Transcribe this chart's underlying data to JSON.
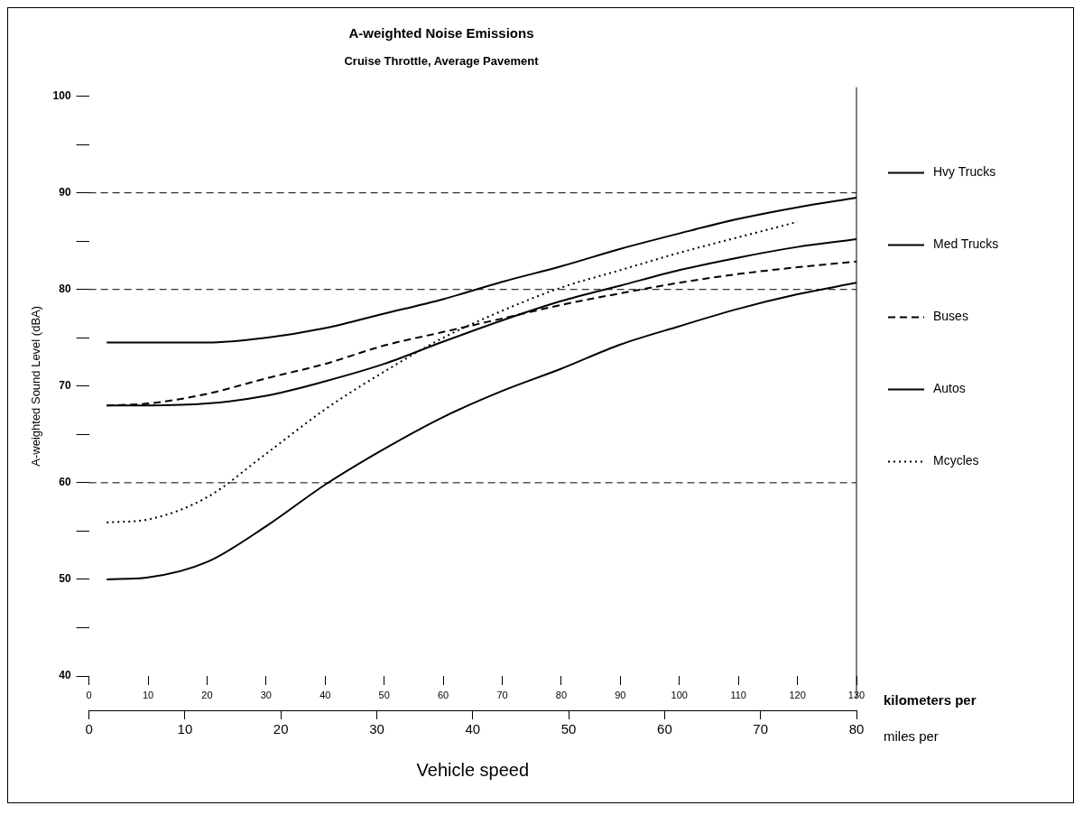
{
  "chart_data": {
    "type": "line",
    "title": "A-weighted Noise Emissions",
    "subtitle": "Cruise Throttle, Average Pavement",
    "ylabel": "A-weighted Sound Level (dBA)",
    "xlabel": "kilometers per",
    "x2label": "miles per",
    "annotations": [
      "Vehicle speed"
    ],
    "x": [
      3,
      10,
      20,
      30,
      40,
      50,
      60,
      70,
      80,
      90,
      100,
      110,
      120,
      130
    ],
    "series": [
      {
        "name": "Hvy Trucks",
        "color": "#000000",
        "line_style": "solid",
        "values": [
          74.5,
          74.5,
          74.5,
          75,
          76,
          77.5,
          79,
          80.8,
          82.4,
          84.2,
          85.8,
          87.3,
          88.5,
          89.5
        ]
      },
      {
        "name": "Med Trucks",
        "color": "#000000",
        "line_style": "solid",
        "values": [
          68,
          68,
          68.2,
          69,
          70.5,
          72.3,
          74.6,
          76.8,
          78.8,
          80.4,
          82,
          83.3,
          84.4,
          85.2
        ]
      },
      {
        "name": "Buses",
        "color": "#000000",
        "line_style": "dashed",
        "values": [
          68,
          68.2,
          69.2,
          70.8,
          72.3,
          74.2,
          75.6,
          77,
          78.4,
          79.6,
          80.7,
          81.6,
          82.3,
          82.9
        ]
      },
      {
        "name": "Autos",
        "color": "#000000",
        "line_style": "solid",
        "values": [
          50,
          50.2,
          51.8,
          55.5,
          59.8,
          63.5,
          66.8,
          69.5,
          71.8,
          74.3,
          76.2,
          78,
          79.5,
          80.7
        ]
      },
      {
        "name": "Mcycles",
        "color": "#000000",
        "line_style": "dotted",
        "values": [
          55.9,
          56.2,
          58.5,
          63,
          67.6,
          71.5,
          75,
          77.8,
          80.2,
          82,
          83.8,
          85.4,
          87,
          null
        ]
      }
    ],
    "xlim": [
      0,
      130
    ],
    "xticks": [
      0,
      10,
      20,
      30,
      40,
      50,
      60,
      70,
      80,
      90,
      100,
      110,
      120,
      130
    ],
    "x2lim": [
      0,
      80
    ],
    "x2ticks": [
      0,
      10,
      20,
      30,
      40,
      50,
      60,
      70,
      80
    ],
    "ylim": [
      40,
      100
    ],
    "yticks": [
      40,
      {
        "value": 45,
        "label": null
      },
      50,
      {
        "value": 55,
        "label": null
      },
      60,
      {
        "value": 65,
        "label": null
      },
      70,
      {
        "value": 75,
        "label": null
      },
      80,
      {
        "value": 85,
        "label": null
      },
      90,
      {
        "value": 95,
        "label": null
      },
      100
    ],
    "ref_lines": [
      {
        "axis": "y",
        "value": 90,
        "line_style": "dashed",
        "color": "#000000"
      },
      {
        "axis": "y",
        "value": 80,
        "line_style": "dashed",
        "color": "#000000"
      },
      {
        "axis": "y",
        "value": 60,
        "line_style": "dashed",
        "color": "#000000"
      },
      {
        "axis": "x",
        "value": 130,
        "line_style": "solid",
        "color": "#000000"
      }
    ],
    "legend": "right"
  }
}
